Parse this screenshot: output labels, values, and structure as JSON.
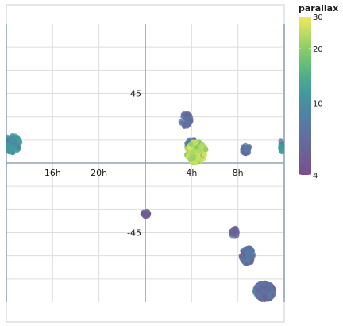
{
  "chart_data": {
    "type": "scatter",
    "projection": "sky-map (right ascension vs declination)",
    "x_axis": {
      "unit": "hours of right ascension",
      "range": [
        12,
        36
      ],
      "tick_values": [
        16,
        20,
        28,
        32
      ],
      "tick_labels": [
        "16h",
        "20h",
        "4h",
        "8h"
      ],
      "gridlines": [
        12,
        16,
        20,
        24,
        28,
        32,
        36
      ],
      "emphasized_line": 24
    },
    "y_axis": {
      "unit": "degrees of declination",
      "range": [
        -90,
        90
      ],
      "tick_values": [
        45,
        -45
      ],
      "tick_labels": [
        "45",
        "-45"
      ],
      "gridlines": [
        -75,
        -60,
        -45,
        -30,
        -15,
        0,
        15,
        30,
        45,
        60,
        75
      ],
      "emphasized_line": 0
    },
    "grid": true,
    "colorbar": {
      "title": "parallax",
      "scale": "log",
      "range": [
        4,
        30
      ],
      "tick_values": [
        4,
        10,
        20,
        30
      ],
      "tick_labels": [
        "4",
        "10",
        "20",
        "30"
      ]
    },
    "clusters": [
      {
        "ra_h": 12.5,
        "dec": 12.5,
        "ra_spread_h": 0.7,
        "dec_spread": 6,
        "n": 80,
        "parallax": 10
      },
      {
        "ra_h": 35.8,
        "dec": 11,
        "ra_spread_h": 0.15,
        "dec_spread": 4,
        "n": 14,
        "parallax": 10
      },
      {
        "ra_h": 27.5,
        "dec": 28,
        "ra_spread_h": 0.45,
        "dec_spread": 4.5,
        "n": 40,
        "parallax": 6.8
      },
      {
        "ra_h": 28.0,
        "dec": 12,
        "ra_spread_h": 0.45,
        "dec_spread": 4,
        "n": 35,
        "parallax": 7.5
      },
      {
        "ra_h": 28.4,
        "dec": 7,
        "ra_spread_h": 0.85,
        "dec_spread": 7,
        "n": 160,
        "parallax": 24
      },
      {
        "ra_h": 32.7,
        "dec": 9,
        "ra_spread_h": 0.35,
        "dec_spread": 3,
        "n": 25,
        "parallax": 6.8
      },
      {
        "ra_h": 24.05,
        "dec": -33,
        "ra_spread_h": 0.3,
        "dec_spread": 1.8,
        "n": 20,
        "parallax": 4.5
      },
      {
        "ra_h": 31.7,
        "dec": -45,
        "ra_spread_h": 0.3,
        "dec_spread": 3,
        "n": 22,
        "parallax": 5.8
      },
      {
        "ra_h": 32.8,
        "dec": -60,
        "ra_spread_h": 0.55,
        "dec_spread": 5.5,
        "n": 60,
        "parallax": 6.8
      },
      {
        "ra_h": 34.3,
        "dec": -83,
        "ra_spread_h": 0.85,
        "dec_spread": 5.5,
        "n": 150,
        "parallax": 6.8
      }
    ]
  }
}
